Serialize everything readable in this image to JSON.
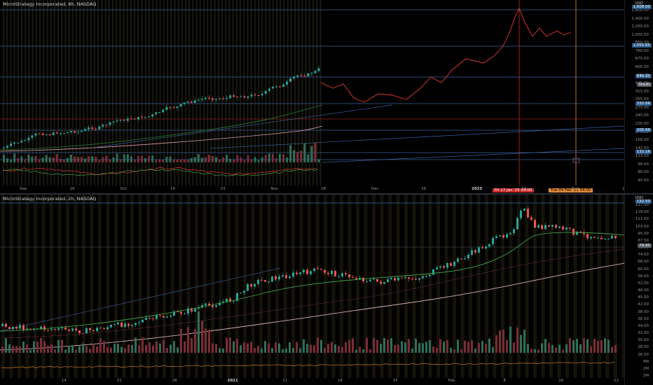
{
  "top_chart": {
    "title": "MicroStrategy Incorporated, 8h, NASDAQ",
    "currency": "USD",
    "price_ticks": [
      "1,600.00",
      "1,400.00",
      "1,250.00",
      "1,050.00",
      "850.00",
      "760.00",
      "675.00",
      "605.00",
      "475.00",
      "425.00",
      "315.00",
      "355.00",
      "275.00",
      "245.00",
      "220.00",
      "176.00",
      "158.50",
      "142.50",
      "113.50",
      "90.00",
      "80.00",
      "40.00"
    ],
    "price_tags": [
      {
        "label": "1,608.00",
        "color": "#2a5a8a"
      },
      {
        "label": "1,055.65",
        "color": "#2a5a8a"
      },
      {
        "label": "646.95",
        "color": "#2a5a8a"
      },
      {
        "label": "SOLID",
        "color": "#555b66"
      },
      {
        "label": "332.66",
        "color": "#2a5a8a"
      },
      {
        "label": "205.66",
        "color": "#2a5a8a"
      },
      {
        "label": "132.16",
        "color": "#2a5a8a"
      }
    ],
    "time_labels": [
      {
        "text": "Sep",
        "major": false
      },
      {
        "text": "16",
        "major": false
      },
      {
        "text": "Oct",
        "major": false
      },
      {
        "text": "14",
        "major": false
      },
      {
        "text": "23",
        "major": false
      },
      {
        "text": "Nov",
        "major": false
      },
      {
        "text": "18",
        "major": false
      },
      {
        "text": "Dec",
        "major": false
      },
      {
        "text": "16",
        "major": false
      },
      {
        "text": "2025",
        "major": true
      },
      {
        "text": "14",
        "major": false
      },
      {
        "text": "Feb",
        "major": false
      },
      {
        "text": "1",
        "major": false
      }
    ],
    "crosshair_date_left": "Fri 17 Jan '25  04:00",
    "crosshair_date_right": "Tue 04 Feb '25  04:00",
    "colors": {
      "up": "#26a69a",
      "down": "#ef5350",
      "projection": "#e53935"
    }
  },
  "bottom_chart": {
    "title": "MicroStrategy Incorporated, 2h, NASDAQ",
    "currency": "USD",
    "price_ticks": [
      "127.00",
      "119.00",
      "111.00",
      "103.00",
      "95.00",
      "87.50",
      "79.95",
      "74.00",
      "68.00",
      "60.00",
      "56.00",
      "52.00",
      "48.00",
      "45.00",
      "42.00",
      "38.00",
      "36.50",
      "34.00",
      "32.00",
      "30.00",
      "28.00",
      "26.50",
      "4M",
      "2M",
      "2M"
    ],
    "price_tags": [
      {
        "label": "132.50",
        "color": "#2a5a8a"
      },
      {
        "label": "79.95",
        "color": "#555b66"
      }
    ],
    "time_labels": [
      {
        "text": "14",
        "major": false
      },
      {
        "text": "21",
        "major": false
      },
      {
        "text": "28",
        "major": false
      },
      {
        "text": "2021",
        "major": true
      },
      {
        "text": "11",
        "major": false
      },
      {
        "text": "18",
        "major": false
      },
      {
        "text": "25",
        "major": false
      },
      {
        "text": "Feb",
        "major": false
      },
      {
        "text": "8",
        "major": false
      },
      {
        "text": "16",
        "major": false
      },
      {
        "text": "22",
        "major": false
      }
    ]
  }
}
